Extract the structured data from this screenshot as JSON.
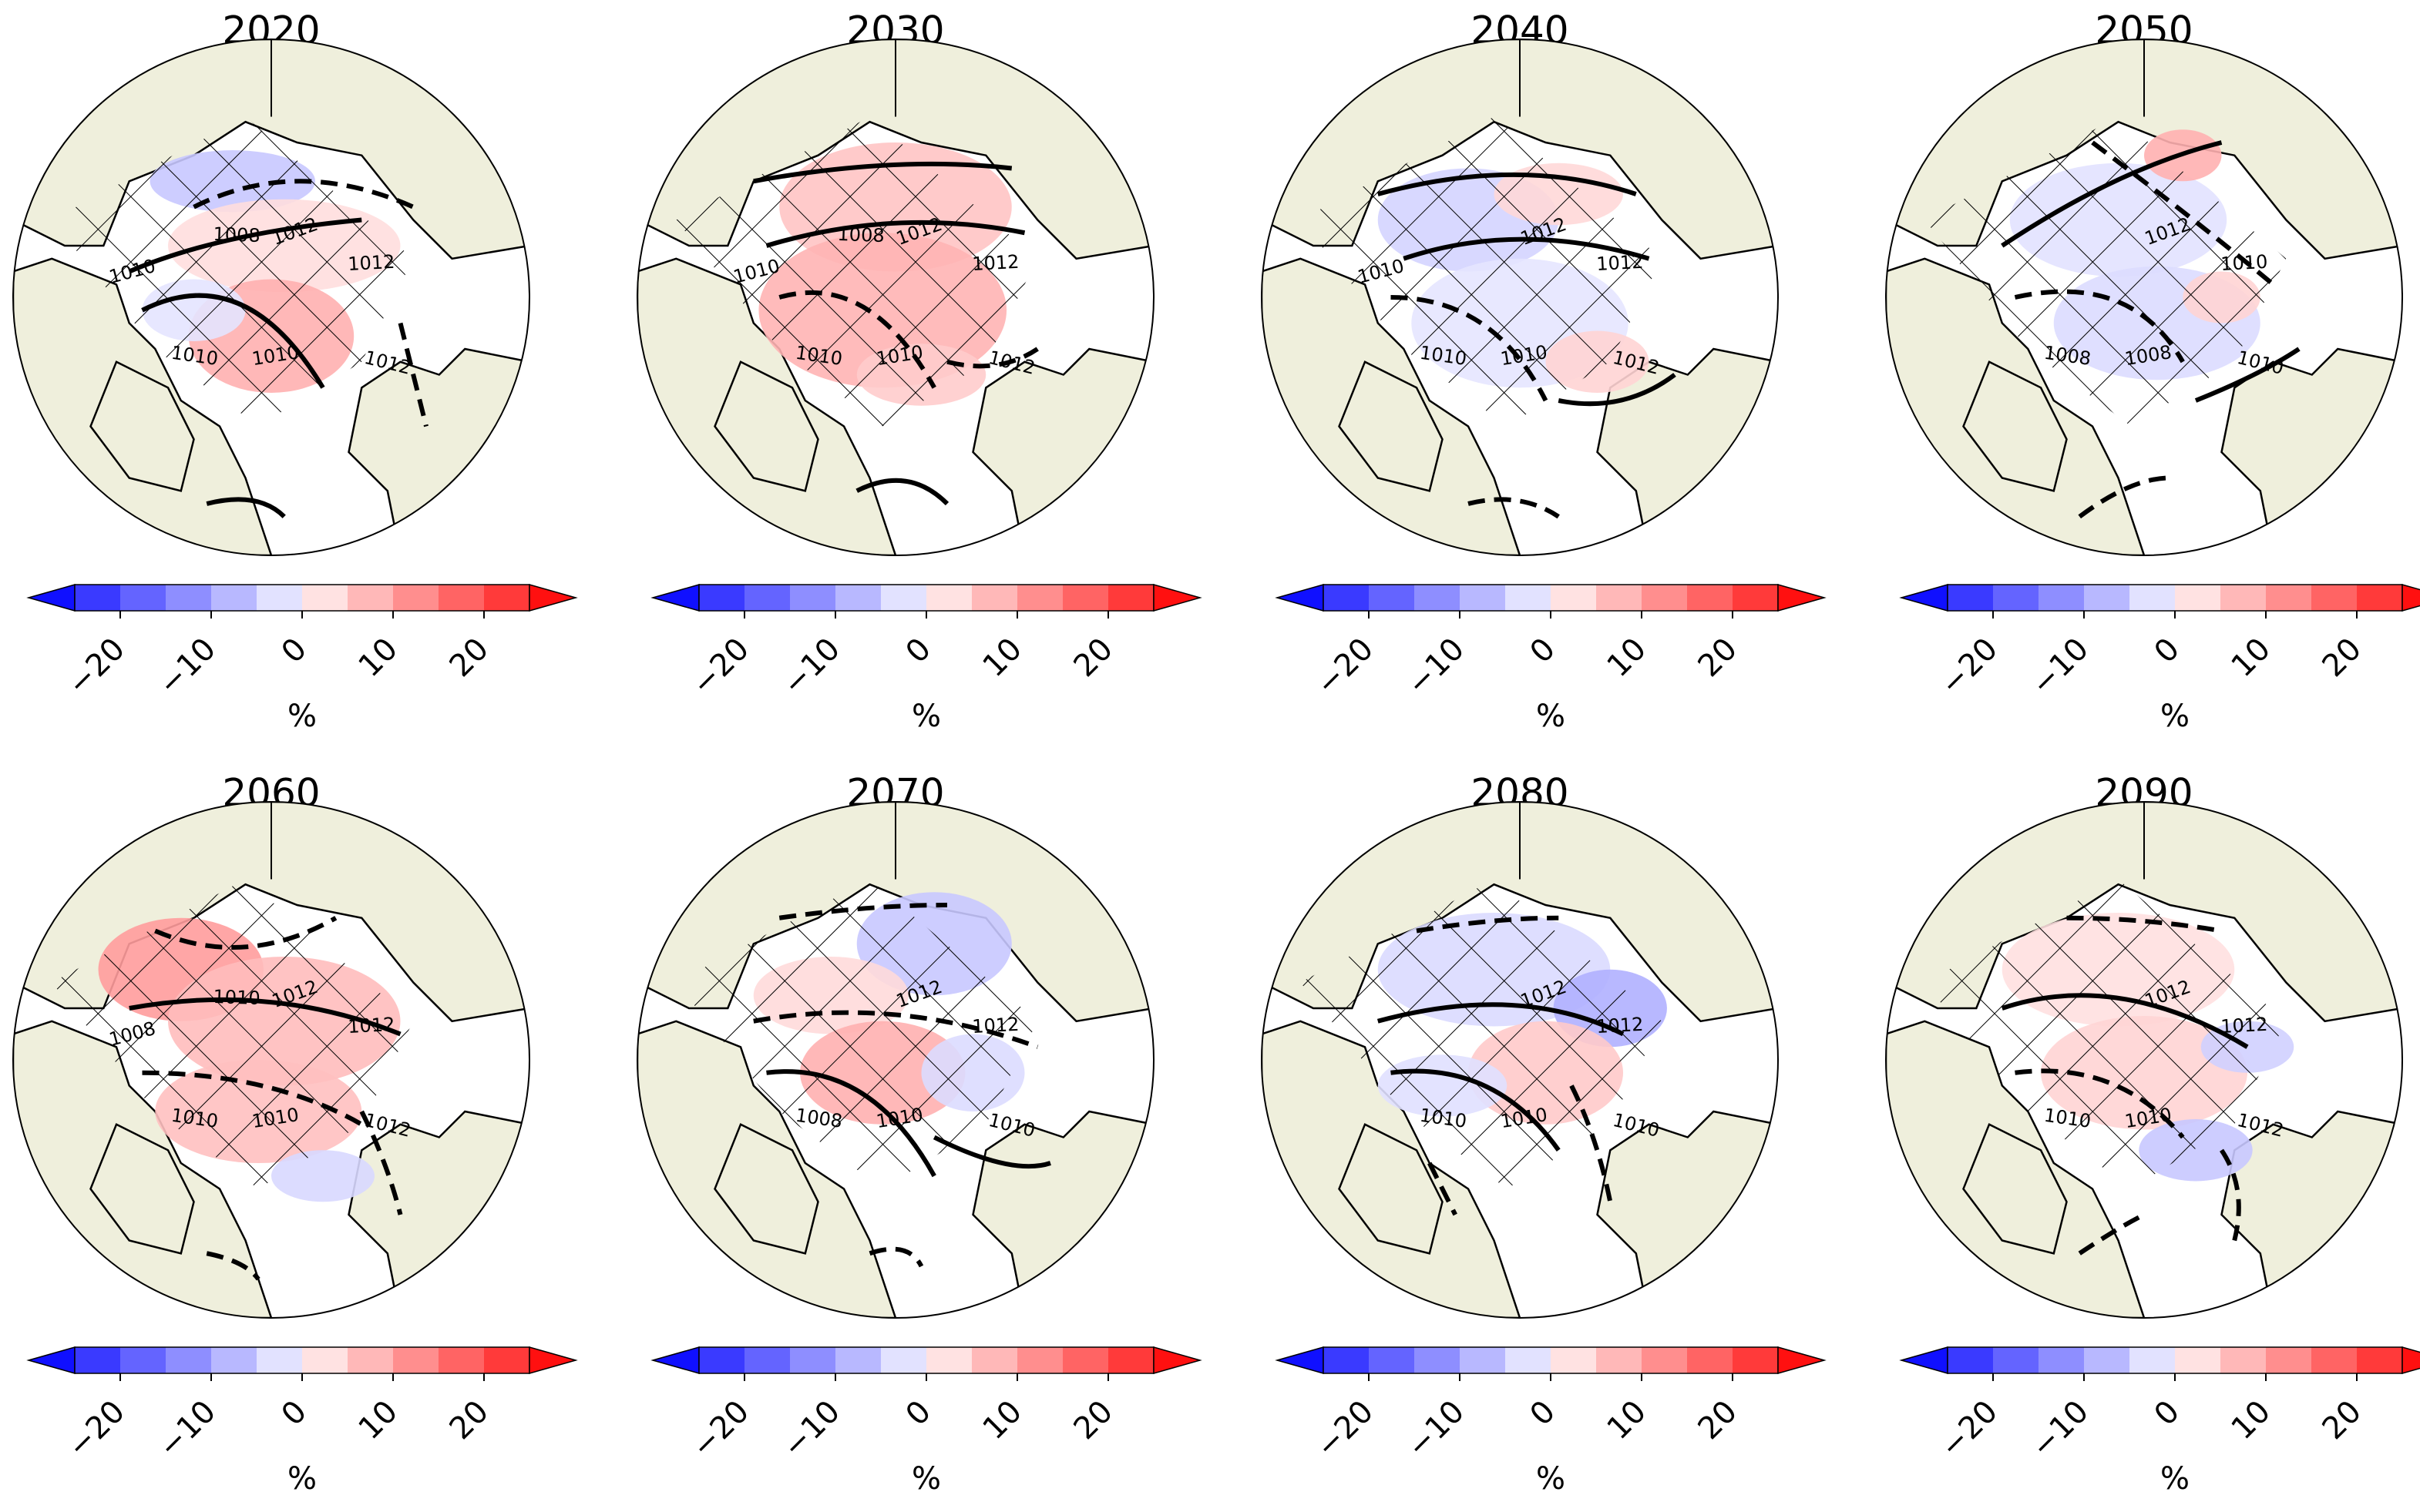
{
  "colors": {
    "land": "#efefdc",
    "ocean": "#ffffff",
    "colorbar": [
      "#1010ff",
      "#3a3aff",
      "#6464ff",
      "#8e8eff",
      "#b8b8ff",
      "#e2e2ff",
      "#ffe2e2",
      "#ffb8b8",
      "#ff8e8e",
      "#ff6464",
      "#ff3a3a",
      "#ff1010"
    ]
  },
  "colorbar": {
    "ticks": [
      "−20",
      "−10",
      "0",
      "10",
      "20"
    ],
    "tick_values": [
      -20,
      -10,
      0,
      10,
      20
    ],
    "range": [
      -25,
      25
    ],
    "extend": "both",
    "unit": "%"
  },
  "panels": [
    {
      "title": "2020",
      "contour_labels": [
        "1012",
        "1012",
        "1012",
        "1010",
        "1010",
        "1010",
        "1008"
      ]
    },
    {
      "title": "2030",
      "contour_labels": [
        "1012",
        "1012",
        "1012",
        "1010",
        "1010",
        "1010",
        "1008"
      ]
    },
    {
      "title": "2040",
      "contour_labels": [
        "1012",
        "1012",
        "1012",
        "1010",
        "1010",
        "1010"
      ]
    },
    {
      "title": "2050",
      "contour_labels": [
        "1012",
        "1010",
        "1010",
        "1008",
        "1008"
      ]
    },
    {
      "title": "2060",
      "contour_labels": [
        "1012",
        "1012",
        "1012",
        "1010",
        "1010",
        "1008",
        "1010"
      ]
    },
    {
      "title": "2070",
      "contour_labels": [
        "1012",
        "1012",
        "1010",
        "1010",
        "1008"
      ]
    },
    {
      "title": "2080",
      "contour_labels": [
        "1012",
        "1012",
        "1010",
        "1010",
        "1010"
      ]
    },
    {
      "title": "2090",
      "contour_labels": [
        "1012",
        "1012",
        "1012",
        "1010",
        "1010"
      ]
    }
  ]
}
